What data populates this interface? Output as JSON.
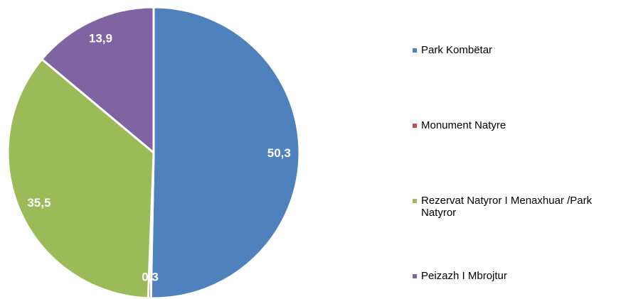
{
  "chart_data": {
    "type": "pie",
    "categories": [
      "Park Kombëtar",
      "Monument Natyre",
      "Rezervat Natyror I Menaxhuar /Park Natyror",
      "Peizazh I Mbrojtur"
    ],
    "values": [
      50.3,
      0.3,
      35.5,
      13.9
    ],
    "value_labels": [
      "50,3",
      "0,3",
      "35,5",
      "13,9"
    ],
    "colors": [
      "#4f81bd",
      "#c0504d",
      "#9bbb59",
      "#8064a2"
    ],
    "legend": "right"
  }
}
